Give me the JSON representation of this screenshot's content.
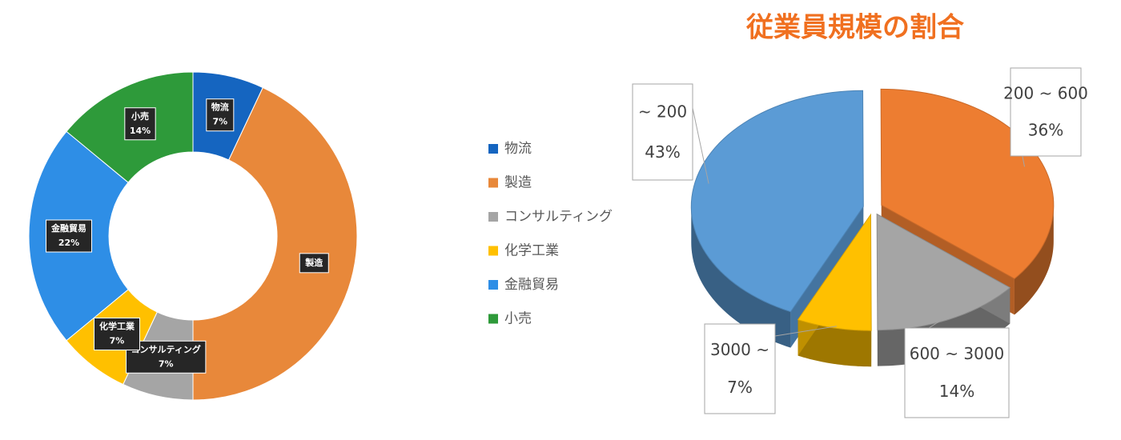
{
  "chart_data": [
    {
      "type": "donut",
      "categories": [
        "物流",
        "製造",
        "コンサルティング",
        "化学工業",
        "金融貿易",
        "小売"
      ],
      "values": [
        7,
        43,
        7,
        7,
        22,
        14
      ],
      "value_labels": [
        "7%",
        null,
        "7%",
        "7%",
        "22%",
        "14%"
      ],
      "colors": [
        "#1565c0",
        "#e8883a",
        "#a5a5a5",
        "#ffc000",
        "#2e8ee6",
        "#2e9a3a"
      ],
      "legend": "right"
    },
    {
      "type": "pie3d",
      "title": "従業員規模の割合",
      "categories": [
        "~ 200",
        "200 ~ 600",
        "600 ~ 3000",
        "3000 ~"
      ],
      "values": [
        43,
        36,
        14,
        7
      ],
      "value_labels": [
        "43%",
        "36%",
        "14%",
        "7%"
      ],
      "colors": [
        "#5b9bd5",
        "#ed7d31",
        "#a5a5a5",
        "#ffc000"
      ]
    }
  ]
}
